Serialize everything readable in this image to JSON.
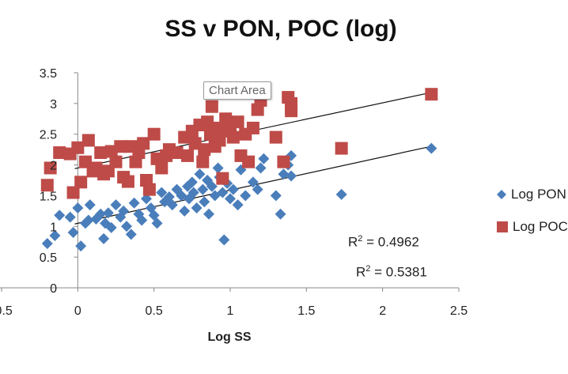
{
  "chart_data": {
    "type": "scatter",
    "title": "SS v PON, POC (log)",
    "xlabel": "Log SS",
    "ylabel": "",
    "xlim": [
      -0.5,
      2.5
    ],
    "ylim": [
      0,
      3.5
    ],
    "xticks": [
      "-0.5",
      "0",
      "0.5",
      "1",
      "1.5",
      "2",
      "2.5"
    ],
    "yticks": [
      "0",
      "0.5",
      "1",
      "1.5",
      "2",
      "2.5",
      "3",
      "3.5"
    ],
    "tooltip": "Chart Area",
    "series": [
      {
        "name": "Log PON",
        "color": "#4a7ebb",
        "marker": "diamond",
        "trendline": {
          "slope": 0.54,
          "intercept": 1.05
        },
        "points": [
          [
            -0.2,
            0.72
          ],
          [
            -0.15,
            0.85
          ],
          [
            -0.12,
            1.18
          ],
          [
            -0.05,
            1.15
          ],
          [
            -0.03,
            0.9
          ],
          [
            0,
            1.3
          ],
          [
            0.02,
            0.68
          ],
          [
            0.05,
            1.05
          ],
          [
            0.07,
            1.1
          ],
          [
            0.08,
            1.35
          ],
          [
            0.12,
            1.12
          ],
          [
            0.15,
            1.2
          ],
          [
            0.17,
            0.8
          ],
          [
            0.18,
            1.05
          ],
          [
            0.2,
            1.22
          ],
          [
            0.22,
            0.98
          ],
          [
            0.25,
            1.35
          ],
          [
            0.28,
            1.15
          ],
          [
            0.3,
            1.25
          ],
          [
            0.32,
            1.0
          ],
          [
            0.35,
            0.87
          ],
          [
            0.37,
            1.38
          ],
          [
            0.4,
            1.2
          ],
          [
            0.42,
            1.1
          ],
          [
            0.45,
            1.45
          ],
          [
            0.48,
            1.3
          ],
          [
            0.5,
            1.18
          ],
          [
            0.52,
            1.05
          ],
          [
            0.55,
            1.55
          ],
          [
            0.57,
            1.4
          ],
          [
            0.6,
            1.48
          ],
          [
            0.62,
            1.35
          ],
          [
            0.65,
            1.6
          ],
          [
            0.68,
            1.5
          ],
          [
            0.7,
            1.25
          ],
          [
            0.72,
            1.65
          ],
          [
            0.73,
            1.45
          ],
          [
            0.75,
            1.72
          ],
          [
            0.76,
            1.55
          ],
          [
            0.78,
            1.3
          ],
          [
            0.8,
            1.85
          ],
          [
            0.82,
            1.6
          ],
          [
            0.83,
            1.4
          ],
          [
            0.85,
            1.75
          ],
          [
            0.86,
            1.2
          ],
          [
            0.88,
            1.65
          ],
          [
            0.9,
            1.5
          ],
          [
            0.92,
            1.95
          ],
          [
            0.93,
            1.8
          ],
          [
            0.95,
            1.55
          ],
          [
            0.96,
            0.78
          ],
          [
            0.98,
            1.7
          ],
          [
            1.0,
            1.45
          ],
          [
            1.02,
            1.6
          ],
          [
            1.05,
            1.35
          ],
          [
            1.07,
            1.92
          ],
          [
            1.1,
            1.5
          ],
          [
            1.15,
            1.72
          ],
          [
            1.18,
            1.6
          ],
          [
            1.2,
            1.95
          ],
          [
            1.22,
            2.1
          ],
          [
            1.3,
            1.5
          ],
          [
            1.33,
            1.2
          ],
          [
            1.35,
            1.85
          ],
          [
            1.38,
            2.0
          ],
          [
            1.4,
            2.15
          ],
          [
            1.4,
            1.82
          ],
          [
            1.73,
            1.52
          ],
          [
            2.32,
            2.27
          ]
        ]
      },
      {
        "name": "Log POC",
        "color": "#be4b48",
        "marker": "square",
        "trendline": {
          "slope": 0.53,
          "intercept": 1.95
        },
        "points": [
          [
            -0.2,
            1.67
          ],
          [
            -0.18,
            1.95
          ],
          [
            -0.12,
            2.2
          ],
          [
            -0.05,
            2.18
          ],
          [
            -0.03,
            1.55
          ],
          [
            0,
            2.28
          ],
          [
            0.02,
            1.72
          ],
          [
            0.05,
            2.05
          ],
          [
            0.07,
            2.4
          ],
          [
            0.1,
            1.9
          ],
          [
            0.12,
            1.95
          ],
          [
            0.15,
            2.2
          ],
          [
            0.17,
            1.85
          ],
          [
            0.2,
            1.9
          ],
          [
            0.22,
            2.22
          ],
          [
            0.25,
            2.05
          ],
          [
            0.28,
            2.3
          ],
          [
            0.3,
            1.8
          ],
          [
            0.33,
            1.73
          ],
          [
            0.35,
            2.3
          ],
          [
            0.38,
            2.05
          ],
          [
            0.4,
            2.2
          ],
          [
            0.43,
            2.35
          ],
          [
            0.45,
            1.75
          ],
          [
            0.47,
            1.6
          ],
          [
            0.5,
            2.5
          ],
          [
            0.52,
            2.1
          ],
          [
            0.55,
            1.95
          ],
          [
            0.58,
            2.15
          ],
          [
            0.6,
            2.25
          ],
          [
            0.65,
            2.2
          ],
          [
            0.7,
            2.45
          ],
          [
            0.72,
            2.15
          ],
          [
            0.75,
            2.55
          ],
          [
            0.77,
            2.35
          ],
          [
            0.8,
            2.65
          ],
          [
            0.82,
            2.05
          ],
          [
            0.83,
            2.25
          ],
          [
            0.85,
            2.7
          ],
          [
            0.87,
            2.5
          ],
          [
            0.88,
            2.95
          ],
          [
            0.9,
            2.3
          ],
          [
            0.92,
            2.6
          ],
          [
            0.93,
            2.4
          ],
          [
            0.95,
            1.78
          ],
          [
            0.97,
            2.75
          ],
          [
            1.0,
            2.55
          ],
          [
            1.02,
            2.45
          ],
          [
            1.05,
            2.7
          ],
          [
            1.07,
            2.15
          ],
          [
            1.1,
            2.5
          ],
          [
            1.12,
            2.05
          ],
          [
            1.15,
            2.6
          ],
          [
            1.18,
            2.9
          ],
          [
            1.2,
            3.05
          ],
          [
            1.3,
            2.45
          ],
          [
            1.35,
            2.05
          ],
          [
            1.38,
            3.1
          ],
          [
            1.4,
            2.88
          ],
          [
            1.4,
            3.0
          ],
          [
            1.73,
            2.27
          ],
          [
            2.32,
            3.15
          ]
        ]
      }
    ],
    "annotations": [
      {
        "label": "R",
        "sup": "2",
        "value": " = 0.4962"
      },
      {
        "label": "R",
        "sup": "2",
        "value": " = 0.5381"
      }
    ]
  }
}
